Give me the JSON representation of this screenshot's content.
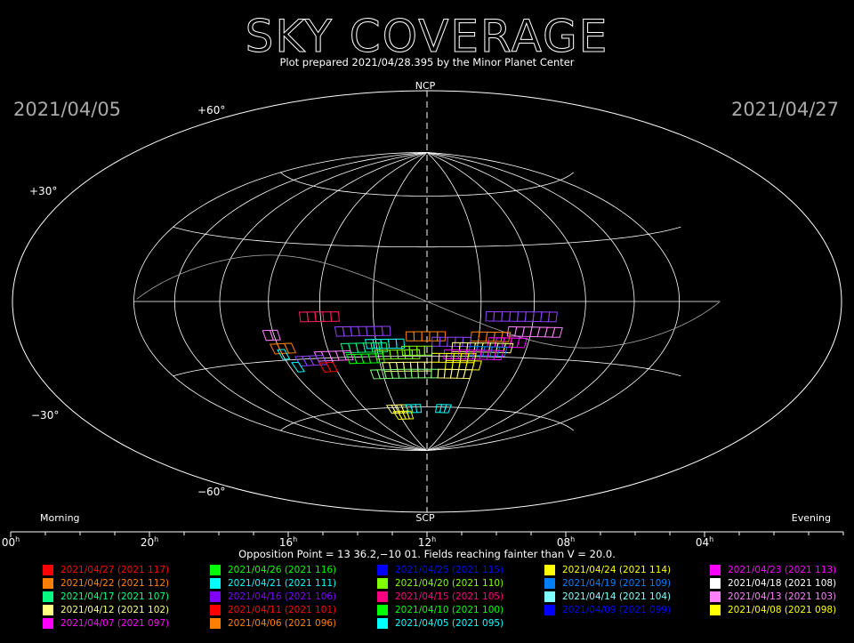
{
  "chart_data": {
    "type": "scatter",
    "projection": "hammer-aitoff all-sky",
    "title": "SKY COVERAGE",
    "subtitle": "Plot prepared 2021/04/28.395 by the Minor Planet Center",
    "date_left": "2021/04/05",
    "date_right": "2021/04/27",
    "pole_north": "NCP",
    "pole_south": "SCP",
    "corner_left": "Morning",
    "corner_right": "Evening",
    "dec_labels": [
      "+60°",
      "+30°",
      "−30°",
      "−60°"
    ],
    "ra_axis": {
      "ticks": [
        "00",
        "20",
        "16",
        "12",
        "08",
        "04"
      ],
      "unit": "h",
      "range_hours": [
        24,
        0
      ]
    },
    "footer": "Opposition Point = 13 36.2,−10 01.  Fields reaching fainter than V = 20.0.",
    "grid": true,
    "colors": {
      "background": "#000000",
      "grid": "#ffffff",
      "ecliptic": "#aaaaaa"
    },
    "legend": [
      {
        "label": "2021/04/27 (2021 117)",
        "color": "#ff0000"
      },
      {
        "label": "2021/04/26 (2021 116)",
        "color": "#00ff00"
      },
      {
        "label": "2021/04/25 (2021 115)",
        "color": "#0000ff"
      },
      {
        "label": "2021/04/24 (2021 114)",
        "color": "#ffff00"
      },
      {
        "label": "2021/04/23 (2021 113)",
        "color": "#ff00ff"
      },
      {
        "label": "2021/04/22 (2021 112)",
        "color": "#ff8000"
      },
      {
        "label": "2021/04/21 (2021 111)",
        "color": "#00ffff"
      },
      {
        "label": "2021/04/20 (2021 110)",
        "color": "#80ff00"
      },
      {
        "label": "2021/04/19 (2021 109)",
        "color": "#0080ff"
      },
      {
        "label": "2021/04/18 (2021 108)",
        "color": "#ffffff"
      },
      {
        "label": "2021/04/17 (2021 107)",
        "color": "#00ff80"
      },
      {
        "label": "2021/04/16 (2021 106)",
        "color": "#8000ff"
      },
      {
        "label": "2021/04/15 (2021 105)",
        "color": "#ff0080"
      },
      {
        "label": "2021/04/14 (2021 104)",
        "color": "#80ffff"
      },
      {
        "label": "2021/04/13 (2021 103)",
        "color": "#ff80ff"
      },
      {
        "label": "2021/04/12 (2021 102)",
        "color": "#ffff80"
      },
      {
        "label": "2021/04/11 (2021 101)",
        "color": "#ff0000"
      },
      {
        "label": "2021/04/10 (2021 100)",
        "color": "#00ff00"
      },
      {
        "label": "2021/04/09 (2021 099)",
        "color": "#0000ff"
      },
      {
        "label": "2021/04/08 (2021 098)",
        "color": "#ffff00"
      },
      {
        "label": "2021/04/07 (2021 097)",
        "color": "#ff00ff"
      },
      {
        "label": "2021/04/06 (2021 096)",
        "color": "#ff8000"
      },
      {
        "label": "2021/04/05 (2021 095)",
        "color": "#00ffff"
      }
    ],
    "field_strips": [
      {
        "color": "#ff2060",
        "ra": 16.8,
        "dec": -8,
        "n": 5
      },
      {
        "color": "#9040ff",
        "ra": 9.8,
        "dec": -8,
        "n": 9
      },
      {
        "color": "#ff80ff",
        "ra": 18.4,
        "dec": -17,
        "n": 2
      },
      {
        "color": "#9040ff",
        "ra": 15.5,
        "dec": -16,
        "n": 7
      },
      {
        "color": "#ff80ff",
        "ra": 8.9,
        "dec": -16,
        "n": 7
      },
      {
        "color": "#ff8000",
        "ra": 12.8,
        "dec": -19,
        "n": 5
      },
      {
        "color": "#ff8000",
        "ra": 10.3,
        "dec": -19,
        "n": 5
      },
      {
        "color": "#00ffff",
        "ra": 14.4,
        "dec": -23,
        "n": 5
      },
      {
        "color": "#9040ff",
        "ra": 11.8,
        "dec": -22,
        "n": 5
      },
      {
        "color": "#ff00ff",
        "ra": 9.6,
        "dec": -22,
        "n": 5
      },
      {
        "color": "#ff8000",
        "ra": 18.3,
        "dec": -24,
        "n": 3
      },
      {
        "color": "#00ff80",
        "ra": 15.4,
        "dec": -25,
        "n": 6
      },
      {
        "color": "#ffff80",
        "ra": 11.0,
        "dec": -25,
        "n": 8
      },
      {
        "color": "#00ffff",
        "ra": 18.1,
        "dec": -27,
        "n": 1
      },
      {
        "color": "#80ff00",
        "ra": 13.0,
        "dec": -27,
        "n": 4
      },
      {
        "color": "#0080ff",
        "ra": 10.3,
        "dec": -27,
        "n": 5
      },
      {
        "color": "#ff80ff",
        "ra": 16.6,
        "dec": -29,
        "n": 5
      },
      {
        "color": "#80ff00",
        "ra": 14.1,
        "dec": -29,
        "n": 6
      },
      {
        "color": "#ff00ff",
        "ra": 11.3,
        "dec": -29,
        "n": 8
      },
      {
        "color": "#9040ff",
        "ra": 17.5,
        "dec": -31,
        "n": 4
      },
      {
        "color": "#00ff00",
        "ra": 15.3,
        "dec": -31,
        "n": 5
      },
      {
        "color": "#ffff00",
        "ra": 11.8,
        "dec": -31,
        "n": 6
      },
      {
        "color": "#00ffff",
        "ra": 17.8,
        "dec": -34,
        "n": 1
      },
      {
        "color": "#ff0000",
        "ra": 16.6,
        "dec": -35,
        "n": 2
      },
      {
        "color": "#ffff80",
        "ra": 13.9,
        "dec": -36,
        "n": 7
      },
      {
        "color": "#ffff00",
        "ra": 11.2,
        "dec": -35,
        "n": 5
      },
      {
        "color": "#80ff80",
        "ra": 14.5,
        "dec": -40,
        "n": 10
      },
      {
        "color": "#ffff80",
        "ra": 11.5,
        "dec": -40,
        "n": 5
      },
      {
        "color": "#ffff80",
        "ra": 14.5,
        "dec": -61,
        "n": 5
      },
      {
        "color": "#00ffff",
        "ra": 13.3,
        "dec": -61,
        "n": 3
      },
      {
        "color": "#00ffff",
        "ra": 11.4,
        "dec": -61,
        "n": 3
      },
      {
        "color": "#ffff00",
        "ra": 14.3,
        "dec": -65,
        "n": 4
      }
    ]
  }
}
